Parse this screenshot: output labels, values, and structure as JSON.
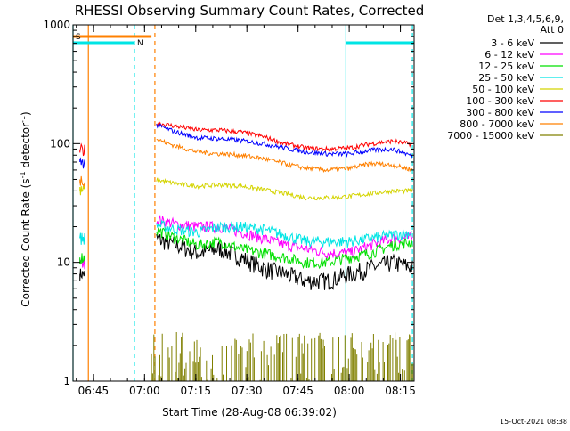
{
  "chart_data": {
    "type": "line",
    "title": "RHESSI Observing Summary Count Rates, Corrected",
    "xlabel": "Start Time (28-Aug-08 06:39:02)",
    "ylabel_main": "Corrected Count Rate (s",
    "ylabel_exp1": "-1",
    "ylabel_mid": " detector",
    "ylabel_exp2": "-1",
    "ylabel_end": ")",
    "yscale": "log",
    "ylim": [
      1,
      1000
    ],
    "xlim_minutes": [
      0,
      100
    ],
    "x_ticks": [
      "06:45",
      "07:00",
      "07:15",
      "07:30",
      "07:45",
      "08:00",
      "08:15"
    ],
    "y_ticks": [
      "1",
      "10",
      "100",
      "1000"
    ],
    "timestamp": "15-Oct-2021 08:38",
    "legend_header": [
      "Det 1,3,4,5,6,9,",
      "Att 0"
    ],
    "flags": [
      {
        "label": "S",
        "color": "#ff8000",
        "start": 0,
        "end": 23
      },
      {
        "label": "N",
        "color": "#00e5e5",
        "start": 0,
        "end": 18
      }
    ],
    "series": [
      {
        "name": "3 - 6 keV",
        "color": "#000000",
        "values": [
          8,
          16,
          14,
          12,
          13,
          11,
          9,
          8,
          7,
          7,
          8,
          9,
          10,
          9
        ]
      },
      {
        "name": "6 - 12 keV",
        "color": "#ff00ff",
        "values": [
          10,
          23,
          21,
          20,
          20,
          18,
          16,
          14,
          13,
          12,
          12,
          14,
          16,
          16
        ]
      },
      {
        "name": "12 - 25 keV",
        "color": "#00e000",
        "values": [
          11,
          19,
          16,
          14,
          15,
          13,
          12,
          11,
          10,
          10,
          11,
          12,
          14,
          15
        ]
      },
      {
        "name": "25 - 50 keV",
        "color": "#00e5e5",
        "values": [
          16,
          21,
          19,
          18,
          20,
          20,
          19,
          17,
          15,
          15,
          15,
          16,
          17,
          18
        ]
      },
      {
        "name": "50 - 100 keV",
        "color": "#d4d400",
        "values": [
          40,
          50,
          46,
          44,
          45,
          44,
          41,
          38,
          35,
          35,
          36,
          38,
          40,
          40
        ]
      },
      {
        "name": "100 - 300 keV",
        "color": "#ff0000",
        "values": [
          88,
          150,
          140,
          130,
          130,
          125,
          115,
          100,
          92,
          90,
          92,
          100,
          105,
          98
        ]
      },
      {
        "name": "300 - 800 keV",
        "color": "#0000ff",
        "values": [
          70,
          145,
          125,
          112,
          110,
          106,
          100,
          92,
          85,
          82,
          82,
          88,
          90,
          78
        ]
      },
      {
        "name": "800 - 7000 keV",
        "color": "#ff8000",
        "values": [
          50,
          110,
          95,
          85,
          82,
          80,
          75,
          68,
          62,
          60,
          62,
          68,
          66,
          60
        ]
      },
      {
        "name": "7000 - 15000 keV",
        "color": "#808000",
        "values": [
          1,
          1,
          1,
          1,
          1,
          1,
          1,
          1,
          1,
          1,
          2,
          1,
          1,
          1
        ]
      }
    ]
  }
}
